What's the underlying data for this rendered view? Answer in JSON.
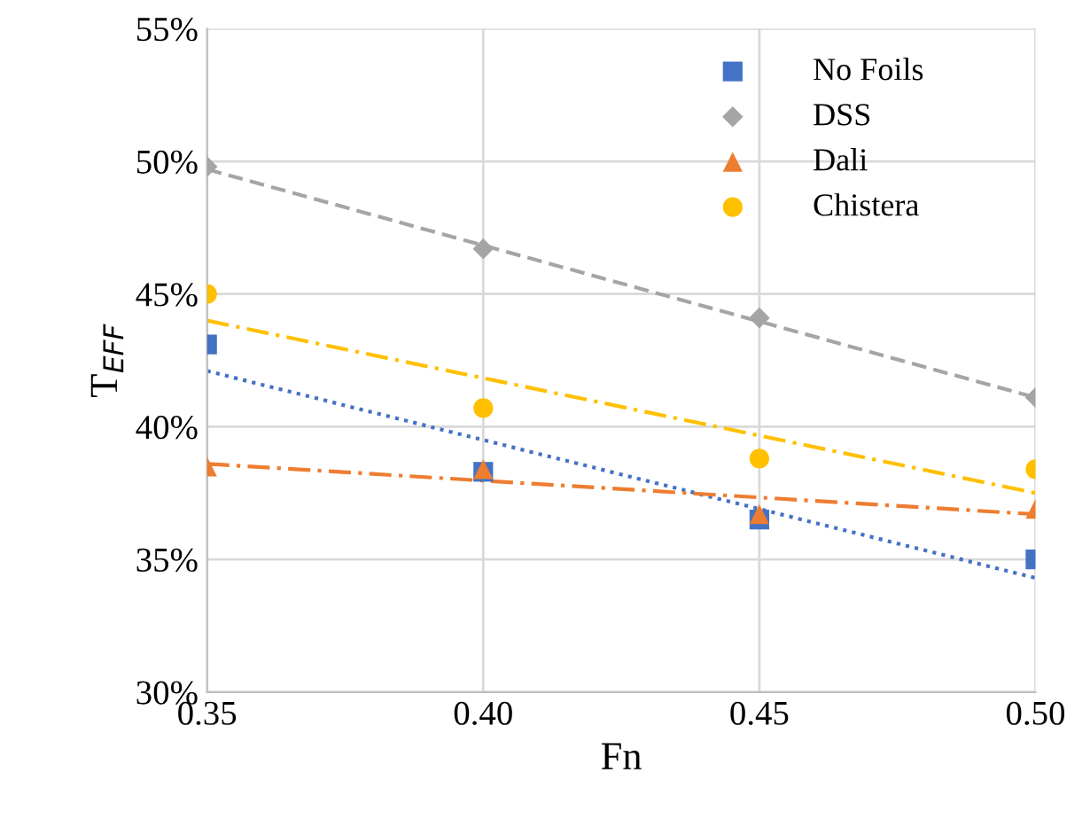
{
  "chart_data": {
    "type": "scatter",
    "xlabel": "Fn",
    "ylabel": "T$_{EFF}$",
    "xlim": [
      0.35,
      0.5
    ],
    "xticks": [
      {
        "value": 0.35,
        "label": "0.35"
      },
      {
        "value": 0.4,
        "label": "0.40"
      },
      {
        "value": 0.45,
        "label": "0.45"
      },
      {
        "value": 0.5,
        "label": "0.50"
      }
    ],
    "ylim": [
      30,
      55
    ],
    "yticks": [
      {
        "value": 30,
        "label": "30%"
      },
      {
        "value": 35,
        "label": "35%"
      },
      {
        "value": 40,
        "label": "40%"
      },
      {
        "value": 45,
        "label": "45%"
      },
      {
        "value": 50,
        "label": "50%"
      },
      {
        "value": 55,
        "label": "55%"
      }
    ],
    "grid": true,
    "legend": "top right",
    "series": [
      {
        "name": "No Foils",
        "color": "#4472c4",
        "marker": "square",
        "x": [
          0.35,
          0.4,
          0.45,
          0.5
        ],
        "values": [
          43.1,
          38.3,
          36.5,
          35.0
        ]
      },
      {
        "name": "DSS",
        "color": "#a5a5a5",
        "marker": "diamond",
        "x": [
          0.35,
          0.4,
          0.45,
          0.5
        ],
        "values": [
          49.8,
          46.7,
          44.1,
          41.1
        ]
      },
      {
        "name": "Dali",
        "color": "#ed7d31",
        "marker": "triangle",
        "x": [
          0.35,
          0.4,
          0.45,
          0.5
        ],
        "values": [
          38.5,
          38.4,
          36.7,
          36.9
        ]
      },
      {
        "name": "Chistera",
        "color": "#ffc000",
        "marker": "circle",
        "x": [
          0.35,
          0.4,
          0.45,
          0.5
        ],
        "values": [
          45.0,
          40.7,
          38.8,
          38.4
        ]
      },
      {
        "type": "line",
        "color": "#4472c4",
        "line_style": "dotted",
        "x": [
          0.35,
          0.5
        ],
        "values": [
          42.1,
          34.3
        ]
      },
      {
        "type": "line",
        "color": "#a5a5a5",
        "line_style": "dashed",
        "x": [
          0.35,
          0.5
        ],
        "values": [
          49.7,
          41.1
        ]
      },
      {
        "type": "line",
        "color": "#ed7d31",
        "line_style": "dashdot",
        "x": [
          0.35,
          0.5
        ],
        "values": [
          38.6,
          36.7
        ]
      },
      {
        "type": "line",
        "color": "#ffc000",
        "line_style": "dashdot",
        "x": [
          0.35,
          0.5
        ],
        "values": [
          44.0,
          37.5
        ]
      }
    ]
  }
}
